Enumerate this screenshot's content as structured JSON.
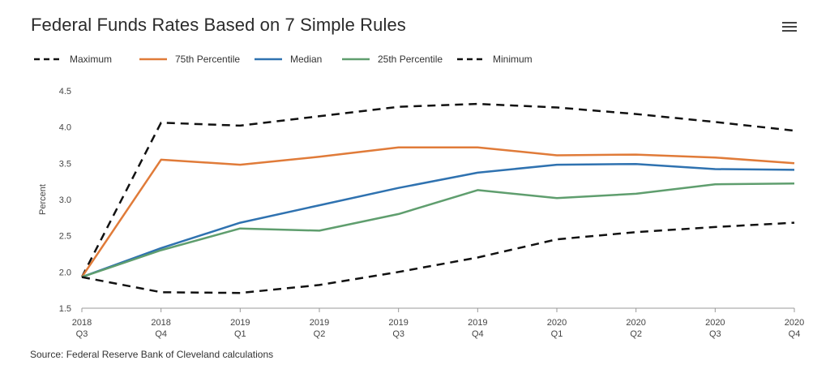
{
  "title": "Federal Funds Rates Based on 7 Simple Rules",
  "menu_icon": "hamburger-menu-icon",
  "source": "Source: Federal Reserve Bank of Cleveland calculations",
  "colors": {
    "maximum": "#111111",
    "p75": "#e07b39",
    "median": "#2f72b0",
    "p25": "#5f9e6e",
    "minimum": "#111111"
  },
  "chart_data": {
    "type": "line",
    "title": "Federal Funds Rates Based on 7 Simple Rules",
    "xlabel": "",
    "ylabel": "Percent",
    "ylim": [
      1.5,
      4.5
    ],
    "yticks": [
      "1.5",
      "2.0",
      "2.5",
      "3.0",
      "3.5",
      "4.0",
      "4.5"
    ],
    "grid": false,
    "legend_position": "top",
    "categories": [
      [
        "2018",
        "Q3"
      ],
      [
        "2018",
        "Q4"
      ],
      [
        "2019",
        "Q1"
      ],
      [
        "2019",
        "Q2"
      ],
      [
        "2019",
        "Q3"
      ],
      [
        "2019",
        "Q4"
      ],
      [
        "2020",
        "Q1"
      ],
      [
        "2020",
        "Q2"
      ],
      [
        "2020",
        "Q3"
      ],
      [
        "2020",
        "Q4"
      ]
    ],
    "series": [
      {
        "name": "Maximum",
        "style": "dashed",
        "color": "#111111",
        "values": [
          1.93,
          4.06,
          4.02,
          4.15,
          4.28,
          4.32,
          4.27,
          4.18,
          4.07,
          3.95
        ]
      },
      {
        "name": "75th Percentile",
        "style": "solid",
        "color": "#e07b39",
        "values": [
          1.93,
          3.55,
          3.48,
          3.59,
          3.72,
          3.72,
          3.61,
          3.62,
          3.58,
          3.5
        ]
      },
      {
        "name": "Median",
        "style": "solid",
        "color": "#2f72b0",
        "values": [
          1.93,
          2.33,
          2.68,
          2.92,
          3.16,
          3.37,
          3.48,
          3.49,
          3.42,
          3.41
        ]
      },
      {
        "name": "25th Percentile",
        "style": "solid",
        "color": "#5f9e6e",
        "values": [
          1.93,
          2.3,
          2.6,
          2.57,
          2.8,
          3.13,
          3.02,
          3.08,
          3.21,
          3.22
        ]
      },
      {
        "name": "Minimum",
        "style": "dashed",
        "color": "#111111",
        "values": [
          1.93,
          1.72,
          1.71,
          1.82,
          2.0,
          2.2,
          2.45,
          2.55,
          2.62,
          2.68
        ]
      }
    ]
  }
}
